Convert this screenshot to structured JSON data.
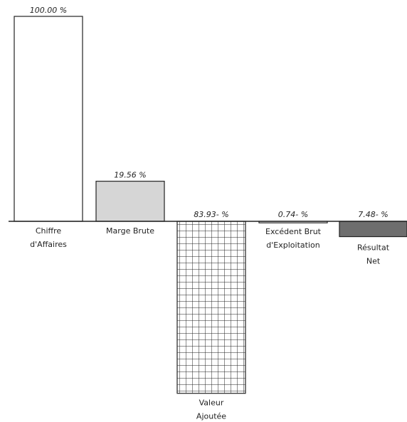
{
  "chart_data": {
    "type": "bar",
    "categories": [
      [
        "Chiffre",
        "d'Affaires"
      ],
      [
        "Marge Brute"
      ],
      [
        "Valeur",
        "Ajoutée"
      ],
      [
        "Excédent Brut",
        "d'Exploitation"
      ],
      [
        "Résultat",
        "Net"
      ]
    ],
    "values": [
      100.0,
      19.56,
      -83.93,
      -0.74,
      -7.48
    ],
    "value_labels": [
      "100.00 %",
      "19.56 %",
      "83.93- %",
      "0.74- %",
      "7.48- %"
    ],
    "fills": [
      "#ffffff",
      "#d6d6d6",
      "grid",
      "#ffffff",
      "#6e6e6e"
    ],
    "axis_color": "#222222"
  }
}
